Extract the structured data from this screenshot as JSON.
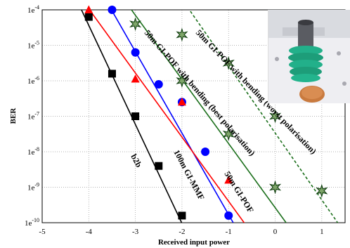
{
  "chart_data": {
    "type": "scatter",
    "title": "",
    "xlabel": "Received input power",
    "ylabel": "BER",
    "xlim": [
      -5,
      1.5
    ],
    "ylim_log10": [
      -10,
      -4
    ],
    "x_ticks": [
      -5,
      -4,
      -3,
      -2,
      -1,
      0,
      1
    ],
    "x_tick_labels": [
      "-5",
      "-4",
      "-3",
      "-2",
      "-1",
      "0",
      "1"
    ],
    "y_ticks_log10": [
      -4,
      -5,
      -6,
      -7,
      -8,
      -9,
      -10
    ],
    "y_tick_labels": [
      {
        "base": "1e",
        "exp": "-4"
      },
      {
        "base": "1e",
        "exp": "-5"
      },
      {
        "base": "1e",
        "exp": "-6"
      },
      {
        "base": "1e",
        "exp": "-7"
      },
      {
        "base": "1e",
        "exp": "-8"
      },
      {
        "base": "1e",
        "exp": "-9"
      },
      {
        "base": "1e",
        "exp": "-10"
      }
    ],
    "grid": "dotted",
    "series": [
      {
        "name": "b2b",
        "marker": "square",
        "color": "#000000",
        "line": "solid",
        "points": [
          [
            -4.0,
            -4.2
          ],
          [
            -3.5,
            -5.8
          ],
          [
            -3.0,
            -7.0
          ],
          [
            -2.5,
            -8.4
          ],
          [
            -2.0,
            -9.8
          ]
        ],
        "fit": [
          [
            -4.3,
            -3.6
          ],
          [
            -1.9,
            -10.3
          ]
        ]
      },
      {
        "name": "100m GI-MMF",
        "marker": "circle",
        "color": "#0000ff",
        "line": "solid",
        "points": [
          [
            -3.5,
            -4.0
          ],
          [
            -3.0,
            -5.2
          ],
          [
            -2.5,
            -6.1
          ],
          [
            -2.0,
            -6.6
          ],
          [
            -1.5,
            -8.0
          ],
          [
            -1.0,
            -9.8
          ]
        ],
        "fit": [
          [
            -3.6,
            -3.8
          ],
          [
            -0.9,
            -10.0
          ]
        ]
      },
      {
        "name": "50m GI-POF",
        "marker": "triangle",
        "color": "#ff0000",
        "line": "solid",
        "points": [
          [
            -4.0,
            -4.0
          ],
          [
            -3.0,
            -5.95
          ],
          [
            -2.0,
            -6.6
          ],
          [
            -1.0,
            -8.8
          ]
        ],
        "fit": [
          [
            -4.15,
            -3.7
          ],
          [
            -0.5,
            -10.3
          ]
        ]
      },
      {
        "name": "50m GI-POF with bending (best polarisation)",
        "marker": "star",
        "color": "#1a6e1a",
        "line": "solid",
        "points": [
          [
            -3.0,
            -4.4
          ],
          [
            -2.0,
            -6.0
          ],
          [
            -1.0,
            -7.5
          ],
          [
            0.0,
            -9.0
          ]
        ],
        "fit": [
          [
            -3.25,
            -3.7
          ],
          [
            0.4,
            -10.3
          ]
        ]
      },
      {
        "name": "50m GI-POF with bending (worst polarisation)",
        "marker": "star",
        "color": "#1a6e1a",
        "line": "dashed",
        "points": [
          [
            -2.0,
            -4.7
          ],
          [
            -1.0,
            -5.5
          ],
          [
            0.0,
            -7.0
          ],
          [
            1.0,
            -9.1
          ]
        ],
        "fit": [
          [
            -2.0,
            -3.7
          ],
          [
            1.5,
            -10.3
          ]
        ]
      }
    ]
  }
}
